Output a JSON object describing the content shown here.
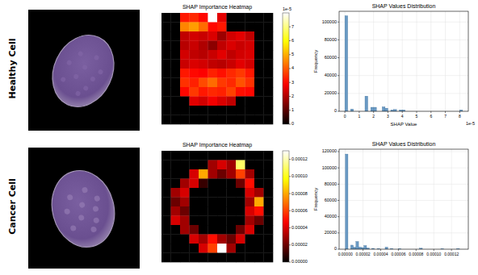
{
  "row_labels": [
    "Healthy Cell",
    "Cancer Cell"
  ],
  "chart_data": [
    {
      "type": "heatmap",
      "title": "SHAP Importance Heatmap",
      "tick_labels": false,
      "cells": [
        [
          0,
          0,
          3.2,
          3.4,
          3.0,
          8,
          2.6,
          0,
          0,
          0,
          0,
          0
        ],
        [
          0,
          0,
          4.5,
          4.8,
          4.2,
          3.0,
          3.2,
          0,
          0,
          0,
          0,
          0
        ],
        [
          0,
          0,
          2.2,
          2.4,
          2.3,
          2.5,
          1.8,
          2.4,
          2.6,
          2.2,
          0,
          0
        ],
        [
          0,
          0,
          2.1,
          2.3,
          2.0,
          1.6,
          2.2,
          2.5,
          2.3,
          2.4,
          0,
          0
        ],
        [
          0,
          0,
          2.4,
          2.2,
          2.1,
          2.3,
          2.6,
          2.2,
          2.4,
          2.5,
          0,
          0
        ],
        [
          0,
          0,
          2.3,
          2.5,
          2.4,
          2.2,
          2.1,
          2.3,
          2.6,
          2.4,
          0,
          0
        ],
        [
          0,
          0,
          3.2,
          3.0,
          2.9,
          3.3,
          3.1,
          3.4,
          3.6,
          3.2,
          0,
          0
        ],
        [
          0,
          0,
          3.5,
          3.3,
          3.8,
          4.2,
          3.6,
          3.4,
          3.9,
          3.5,
          0,
          0
        ],
        [
          0,
          0,
          3.0,
          3.6,
          3.2,
          3.4,
          3.3,
          3.7,
          3.1,
          3.0,
          0,
          0
        ],
        [
          0,
          0,
          0,
          2.6,
          2.4,
          2.8,
          2.5,
          2.2,
          0,
          0,
          0,
          0
        ],
        [
          0,
          0,
          0,
          0,
          0,
          0,
          0,
          0,
          0,
          0,
          0,
          0
        ],
        [
          0,
          0,
          0,
          0,
          0,
          0,
          0,
          0,
          0,
          0,
          0,
          0
        ]
      ],
      "colorbar_range": [
        0,
        8
      ],
      "colorbar_ticks": [
        0,
        1,
        2,
        3,
        4,
        5,
        6,
        7
      ],
      "colorbar_offset": "1e-5"
    },
    {
      "type": "histogram",
      "title": "SHAP Values Distribution",
      "x_label": "SHAP Value",
      "y_label": "Frequency",
      "color": "#6a9ac4",
      "grid": true,
      "x_offset": "1e-5",
      "bins": [
        0,
        0.2,
        0.4,
        0.6,
        0.8,
        1,
        1.2,
        1.4,
        1.6,
        1.8,
        2,
        2.2,
        2.4,
        2.6,
        2.8,
        3,
        3.2,
        3.4,
        3.6,
        3.8,
        4,
        4.2,
        4.4,
        4.6,
        4.8,
        5,
        5.2,
        5.4,
        5.6,
        5.8,
        6,
        6.2,
        6.4,
        6.6,
        6.8,
        7,
        7.2,
        7.4,
        7.6,
        7.8,
        8,
        8.2
      ],
      "values": [
        107000,
        0,
        2500,
        0,
        0,
        0,
        0,
        17000,
        0,
        4500,
        4500,
        0,
        0,
        5000,
        3500,
        0,
        1500,
        2000,
        0,
        1500,
        1500,
        0,
        0,
        0,
        0,
        0,
        0,
        0,
        0,
        0,
        0,
        0,
        0,
        0,
        0,
        0,
        0,
        0,
        0,
        0,
        1500
      ],
      "xlim": [
        -0.4,
        8.6
      ],
      "xticks": [
        0,
        1,
        2,
        3,
        4,
        5,
        6,
        7,
        8
      ],
      "ylim": [
        0,
        112000
      ],
      "yticks": [
        0,
        20000,
        40000,
        60000,
        80000,
        100000
      ]
    },
    {
      "type": "heatmap",
      "title": "SHAP Importance Heatmap",
      "tick_labels": false,
      "cells": [
        [
          0,
          0,
          0,
          0,
          0,
          0,
          0,
          0,
          0,
          0,
          0,
          0
        ],
        [
          0,
          0,
          0,
          0,
          0,
          3e-05,
          4e-05,
          3e-05,
          0.00011,
          0,
          0,
          0
        ],
        [
          0,
          0,
          0,
          4e-05,
          8e-05,
          3e-05,
          2e-05,
          3e-05,
          6e-05,
          3e-05,
          0,
          0
        ],
        [
          0,
          0,
          3e-05,
          4e-05,
          1e-05,
          0,
          0,
          0,
          2e-05,
          5e-05,
          0,
          0
        ],
        [
          0,
          3e-05,
          4e-05,
          0,
          0,
          0,
          0,
          0,
          0,
          4e-05,
          3e-05,
          0
        ],
        [
          0,
          2e-05,
          3e-05,
          0,
          0,
          0,
          0,
          0,
          0,
          3e-05,
          8e-05,
          0
        ],
        [
          0,
          3e-05,
          2e-05,
          0,
          0,
          0,
          0,
          0,
          0,
          4e-05,
          5e-05,
          0
        ],
        [
          0,
          4e-05,
          3e-05,
          0,
          0,
          0,
          0,
          0,
          0,
          3e-05,
          2e-05,
          0
        ],
        [
          0,
          0,
          3e-05,
          2e-05,
          0,
          0,
          0,
          0,
          2e-05,
          4e-05,
          0,
          0
        ],
        [
          0,
          0,
          0,
          4e-05,
          3e-05,
          5e-05,
          3e-05,
          2e-05,
          4e-05,
          0,
          0,
          0
        ],
        [
          0,
          0,
          0,
          0,
          4e-05,
          6e-05,
          0.00013,
          3e-05,
          0,
          0,
          0,
          0
        ],
        [
          0,
          0,
          0,
          0,
          0,
          0,
          0,
          0,
          0,
          0,
          0,
          0
        ]
      ],
      "colorbar_range": [
        0,
        0.00013
      ],
      "colorbar_ticks": [
        {
          "value": 0,
          "label": "0.00000"
        },
        {
          "value": 2e-05,
          "label": "0.00002"
        },
        {
          "value": 4e-05,
          "label": "0.00004"
        },
        {
          "value": 6e-05,
          "label": "0.00006"
        },
        {
          "value": 8e-05,
          "label": "0.00008"
        },
        {
          "value": 0.0001,
          "label": "0.00010"
        },
        {
          "value": 0.00012,
          "label": "0.00012"
        }
      ]
    },
    {
      "type": "histogram",
      "title": "SHAP Values Distribution",
      "y_label": "Frequency",
      "color": "#6a9ac4",
      "grid": true,
      "bins": [
        0,
        3e-06,
        6e-06,
        9e-06,
        1.2e-05,
        1.5e-05,
        1.8e-05,
        2.1e-05,
        2.4e-05,
        2.7e-05,
        3e-05,
        3.3e-05,
        3.6e-05,
        3.9e-05,
        4.2e-05,
        4.5e-05,
        4.8e-05,
        5.1e-05,
        5.4e-05,
        5.7e-05,
        6e-05,
        6.3e-05,
        6.6e-05,
        6.9e-05,
        7.2e-05,
        7.5e-05,
        7.8e-05,
        8.1e-05,
        8.4e-05,
        8.7e-05,
        9e-05,
        9.3e-05,
        9.6e-05,
        9.9e-05,
        0.000102,
        0.000105,
        0.000108,
        0.000111,
        0.000114,
        0.000117,
        0.00012,
        0.000123,
        0.000126,
        0.000129,
        0.000132
      ],
      "values": [
        117000,
        0,
        5000,
        2500,
        9500,
        2500,
        2000,
        4500,
        1500,
        0,
        1000,
        0,
        800,
        0,
        0,
        2500,
        0,
        800,
        0,
        0,
        600,
        0,
        0,
        0,
        0,
        0,
        0,
        0,
        1200,
        0,
        0,
        0,
        0,
        0,
        0,
        0,
        500,
        0,
        0,
        0,
        0,
        0,
        700,
        0
      ],
      "xlim": [
        -7e-06,
        0.000139
      ],
      "xticks": [
        {
          "value": 0,
          "label": "0.00000"
        },
        {
          "value": 2e-05,
          "label": "0.00002"
        },
        {
          "value": 4e-05,
          "label": "0.00004"
        },
        {
          "value": 6e-05,
          "label": "0.00006"
        },
        {
          "value": 8e-05,
          "label": "0.00008"
        },
        {
          "value": 0.0001,
          "label": "0.00010"
        },
        {
          "value": 0.00012,
          "label": "0.00012"
        }
      ],
      "ylim": [
        0,
        123000
      ],
      "yticks": [
        0,
        20000,
        40000,
        60000,
        80000,
        100000,
        120000
      ]
    }
  ]
}
